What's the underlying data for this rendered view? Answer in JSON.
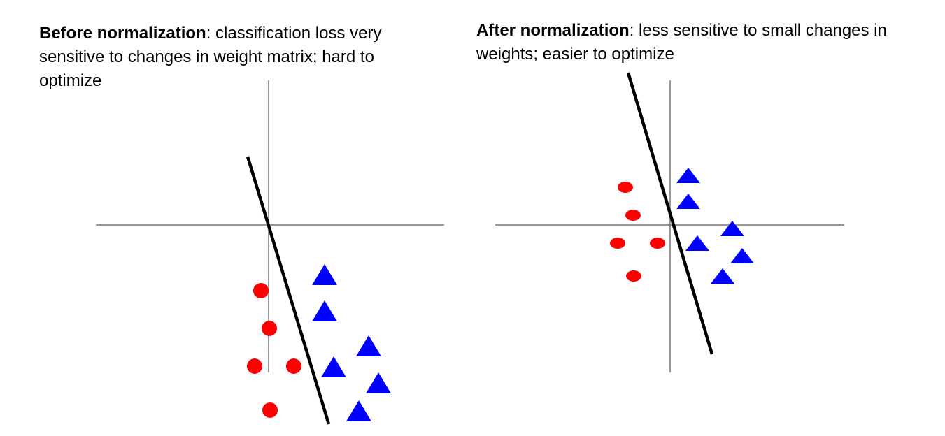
{
  "panels": [
    {
      "title_bold": "Before normalization",
      "title_rest": ": classification loss very sensitive to changes in weight matrix; hard to optimize"
    },
    {
      "title_bold": "After normalization",
      "title_rest": ": less sensitive to small changes in weights; easier to optimize"
    }
  ],
  "colors": {
    "axis": "#777777",
    "boundary": "#000000",
    "circle": "#ff0000",
    "triangle": "#0000ff"
  }
}
